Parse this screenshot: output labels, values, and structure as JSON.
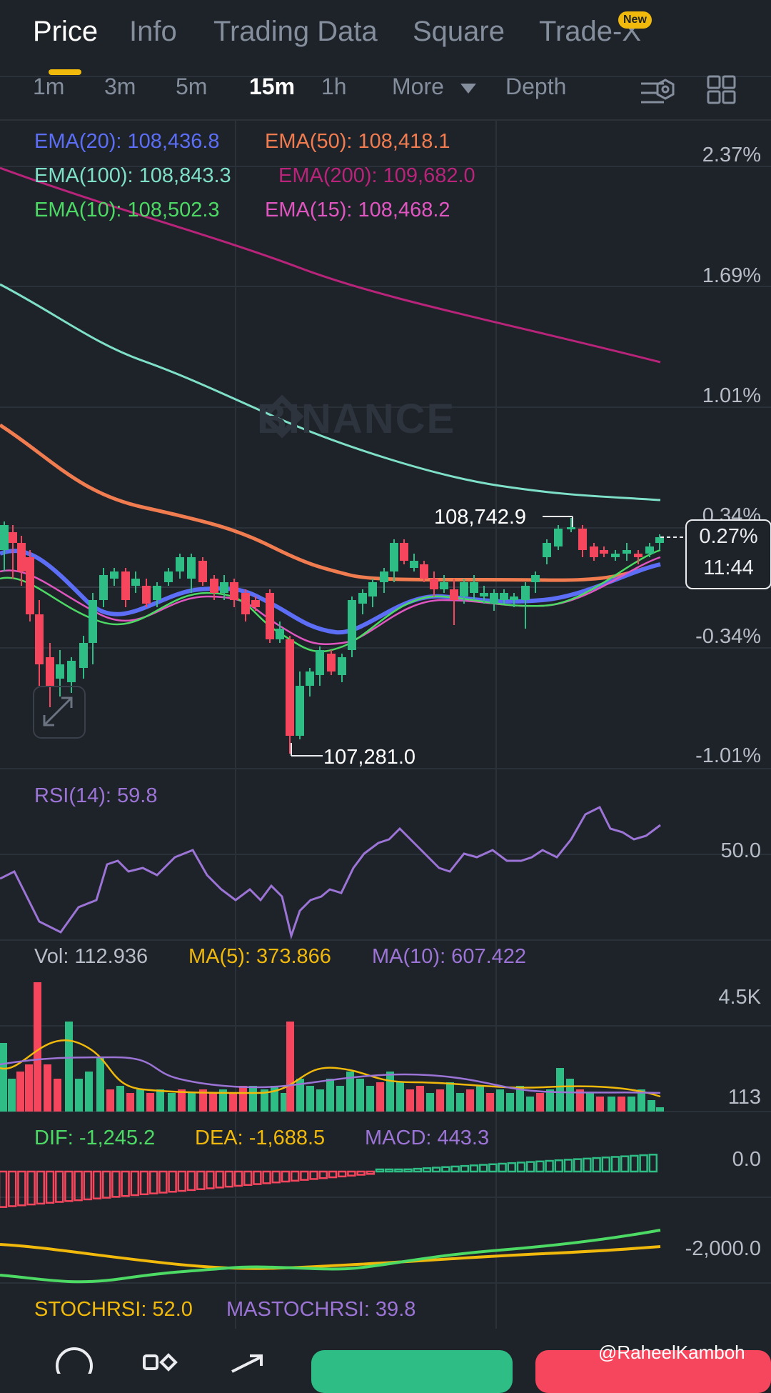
{
  "tabs": [
    {
      "label": "Price",
      "active": true
    },
    {
      "label": "Info",
      "active": false
    },
    {
      "label": "Trading Data",
      "active": false
    },
    {
      "label": "Square",
      "active": false
    },
    {
      "label": "Trade-X",
      "active": false
    }
  ],
  "new_badge": "New",
  "intervals": [
    {
      "label": "1m",
      "active": false
    },
    {
      "label": "3m",
      "active": false
    },
    {
      "label": "5m",
      "active": false
    },
    {
      "label": "15m",
      "active": true
    },
    {
      "label": "1h",
      "active": false
    },
    {
      "label": "More",
      "active": false
    },
    {
      "label": "Depth",
      "active": false
    }
  ],
  "ema_legend": {
    "ema20": "EMA(20): 108,436.8",
    "ema50": "EMA(50): 108,418.1",
    "ema100": "EMA(100): 108,843.3",
    "ema200": "EMA(200): 109,682.0",
    "ema10": "EMA(10): 108,502.3",
    "ema15": "EMA(15): 108,468.2"
  },
  "price_axis": [
    "2.37%",
    "1.69%",
    "1.01%",
    "0.34%",
    "-0.34%",
    "-1.01%"
  ],
  "watermark": "BINANCE",
  "high_label": "108,742.9",
  "low_label": "107,281.0",
  "current_tag": {
    "change": "0.27%",
    "countdown": "11:44"
  },
  "rsi": {
    "label": "RSI(14): 59.8",
    "axis": "50.0"
  },
  "volume": {
    "vol": "Vol: 112.936",
    "ma5": "MA(5): 373.866",
    "ma10": "MA(10): 607.422",
    "axis_top": "4.5K",
    "axis_bottom": "113"
  },
  "macd": {
    "dif": "DIF: -1,245.2",
    "dea": "DEA: -1,688.5",
    "macd": "MACD: 443.3",
    "axis_top": "0.0",
    "axis_bottom": "-2,000.0"
  },
  "stoch": {
    "stoch": "STOCHRSI: 52.0",
    "ma": "MASTOCHRSI: 39.8"
  },
  "credit": "@RaheelKamboh",
  "colors": {
    "ema20": "#5b6ef5",
    "ema50": "#f07c50",
    "ema100": "#7ee0c8",
    "ema200": "#b8247a",
    "ema10": "#4cd964",
    "ema15": "#e056c0",
    "up": "#2ebd85",
    "down": "#f6465d",
    "rsi": "#9b74d6",
    "ma5": "#f0b90b",
    "ma10": "#9b74d6",
    "dea": "#f0b90b",
    "dif": "#4cd964"
  },
  "chart_data": {
    "type": "candlestick",
    "interval": "15m",
    "price_high": 108742.9,
    "price_low": 107281.0,
    "rsi_last": 59.8,
    "volume_last": 112.936,
    "macd_last": 443.3
  }
}
